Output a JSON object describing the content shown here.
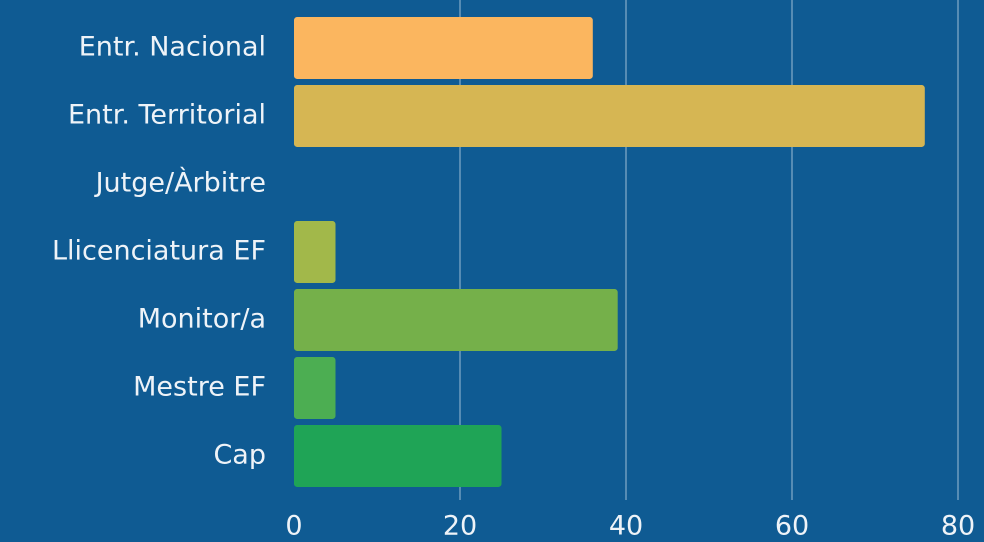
{
  "chart_data": {
    "type": "barh",
    "categories": [
      "Entr. Nacional",
      "Entr. Territorial",
      "Jutge/Àrbitre",
      "Llicenciatura EF",
      "Monitor/a",
      "Mestre EF",
      "Cap"
    ],
    "values": [
      36,
      76,
      0,
      5,
      39,
      5,
      25
    ],
    "colors": [
      "#fbb65f",
      "#d6b653",
      "#c4b64f",
      "#a2b84a",
      "#75b04a",
      "#4cae52",
      "#1fa456"
    ],
    "xlim": [
      0,
      80
    ],
    "xticks": [
      0,
      20,
      40,
      60,
      80
    ],
    "grid": true
  }
}
